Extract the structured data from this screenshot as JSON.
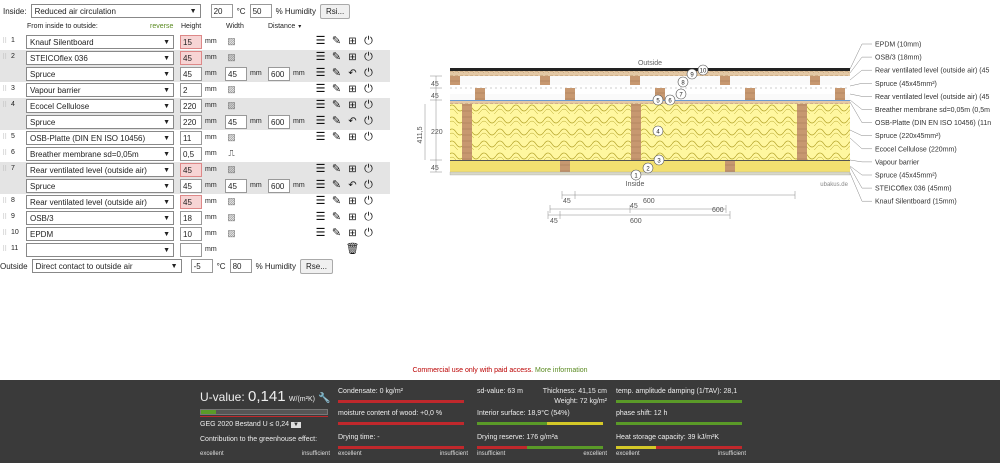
{
  "header": {
    "inside_label": "Inside:",
    "inside_condition": "Reduced air circulation",
    "temp": "20",
    "temp_unit": "°C",
    "humidity": "50",
    "humidity_unit": "% Humidity",
    "rsi_button": "Rsi..."
  },
  "columns": {
    "from_inside": "From inside to outside:",
    "reverse": "reverse",
    "height": "Height",
    "width": "Width",
    "distance": "Distance"
  },
  "layers": [
    {
      "num": "1",
      "material": "Knauf Silentboard",
      "height": "15",
      "pink": true,
      "shade": false,
      "width": "",
      "distance": "",
      "tools": "full"
    },
    {
      "num": "2",
      "material": "STEICOflex 036",
      "height": "45",
      "pink": true,
      "shade": true,
      "width": "",
      "distance": "",
      "tools": "full"
    },
    {
      "num": "",
      "material": "Spruce",
      "height": "45",
      "pink": false,
      "shade": true,
      "width": "45",
      "distance": "600",
      "tools": "sub"
    },
    {
      "num": "3",
      "material": "Vapour barrier",
      "height": "2",
      "pink": false,
      "shade": false,
      "width": "",
      "distance": "",
      "tools": "full"
    },
    {
      "num": "4",
      "material": "Ecocel Cellulose",
      "height": "220",
      "pink": false,
      "shade": true,
      "width": "",
      "distance": "",
      "tools": "full"
    },
    {
      "num": "",
      "material": "Spruce",
      "height": "220",
      "pink": false,
      "shade": true,
      "width": "45",
      "distance": "600",
      "tools": "sub"
    },
    {
      "num": "5",
      "material": "OSB-Platte (DIN EN ISO 10456)",
      "height": "11",
      "pink": false,
      "shade": false,
      "width": "",
      "distance": "",
      "tools": "full"
    },
    {
      "num": "6",
      "material": "Breather membrane sd=0,05m",
      "height": "0,5",
      "pink": false,
      "shade": false,
      "width": "",
      "distance": "",
      "tools": "none"
    },
    {
      "num": "7",
      "material": "Rear ventilated level (outside air)",
      "height": "45",
      "pink": true,
      "shade": true,
      "width": "",
      "distance": "",
      "tools": "full"
    },
    {
      "num": "",
      "material": "Spruce",
      "height": "45",
      "pink": false,
      "shade": true,
      "width": "45",
      "distance": "600",
      "tools": "sub"
    },
    {
      "num": "8",
      "material": "Rear ventilated level (outside air)",
      "height": "45",
      "pink": true,
      "shade": false,
      "width": "",
      "distance": "",
      "tools": "full"
    },
    {
      "num": "9",
      "material": "OSB/3",
      "height": "18",
      "pink": false,
      "shade": false,
      "width": "",
      "distance": "",
      "tools": "full"
    },
    {
      "num": "10",
      "material": "EPDM",
      "height": "10",
      "pink": false,
      "shade": false,
      "width": "",
      "distance": "",
      "tools": "full"
    },
    {
      "num": "11",
      "material": "",
      "height": "",
      "pink": false,
      "shade": false,
      "width": "",
      "distance": "",
      "tools": "trash"
    }
  ],
  "mm": "mm",
  "outside": {
    "label": "Outside",
    "condition": "Direct contact to outside air",
    "temp": "-5",
    "temp_unit": "°C",
    "humidity": "80",
    "humidity_unit": "% Humidity",
    "rse_button": "Rse..."
  },
  "diagram": {
    "outside": "Outside",
    "inside": "Inside",
    "brand": "ubakus.de",
    "dim_left": [
      "45",
      "45",
      "220",
      "45"
    ],
    "total": "411,5",
    "dims_bottom": [
      "45",
      "600",
      "45",
      "600",
      "45",
      "600"
    ],
    "legend": [
      "EPDM (10mm)",
      "OSB/3 (18mm)",
      "Rear ventilated level (outside air) (45",
      "Spruce (45x45mm²)",
      "Rear ventilated level (outside air) (45",
      "Breather membrane sd=0,05m (0,5m",
      "OSB-Platte (DIN EN ISO 10456) (11n",
      "Spruce (220x45mm²)",
      "Ecocel Cellulose (220mm)",
      "Vapour barrier",
      "Spruce (45x45mm²)",
      "STEICOflex 036 (45mm)",
      "Knauf Silentboard (15mm)"
    ],
    "markers": [
      "1",
      "2",
      "3",
      "4",
      "5",
      "6",
      "7",
      "8",
      "9",
      "10"
    ]
  },
  "commercial": {
    "text": "Commercial use only with paid access.",
    "link": "More information"
  },
  "results": {
    "uvalue_label": "U-value:",
    "uvalue": "0,141",
    "uvalue_unit": "W/(m²K)",
    "uvalue_level": 0.12,
    "geg": "GEG 2020 Bestand U ≤ 0,24",
    "greenhouse": "Contribution to the greenhouse effect:",
    "condensate": "Condensate: 0 kg/m²",
    "moisture": "moisture content of wood: +0,0 %",
    "drying_time": "Drying time: -",
    "sd": "sd-value: 63 m",
    "thickness": "Thickness: 41,15 cm",
    "weight": "Weight: 72 kg/m²",
    "interior_surface": "Interior surface: 18,9°C (54%)",
    "drying_reserve": "Drying reserve: 176 g/m²a",
    "temp_amp": "temp. amplitude damping (1/TAV): 28,1",
    "phase_shift": "phase shift: 12 h",
    "heat_storage": "Heat storage capacity: 39 kJ/m²K",
    "excellent": "excellent",
    "insufficient": "insufficient",
    "accent_green": "#5a9a28",
    "accent_red": "#c0282c",
    "accent_yellow": "#d4c828"
  }
}
